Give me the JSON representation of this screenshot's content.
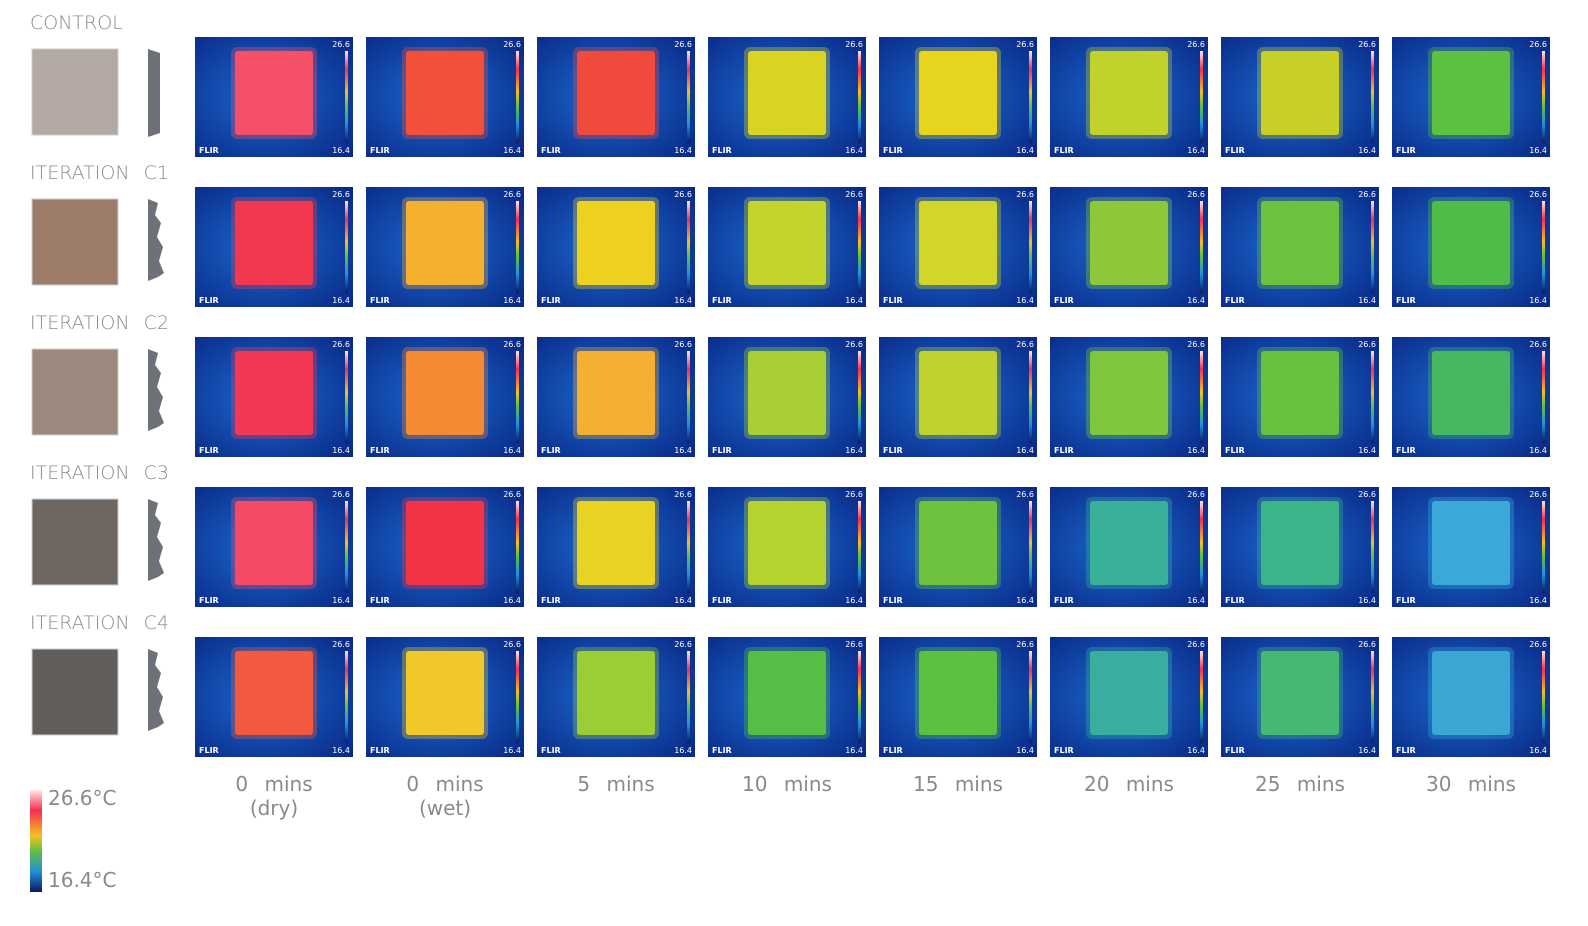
{
  "rows": [
    {
      "label": "CONTROL",
      "sample_color": "#b3a8a2",
      "cells": [
        "#f5506a",
        "#f2503a",
        "#f04a3c",
        "#d8d424",
        "#e6d41e",
        "#c2d22c",
        "#c8d028",
        "#5cc040"
      ]
    },
    {
      "label": "ITERATION C1",
      "sample_color": "#9e7c6a",
      "cells": [
        "#f2384e",
        "#f6b030",
        "#eed020",
        "#c4d42c",
        "#d2d628",
        "#8cc83a",
        "#6cc23e",
        "#50bc48"
      ]
    },
    {
      "label": "ITERATION C2",
      "sample_color": "#9c887c",
      "cells": [
        "#f23852",
        "#f48a34",
        "#f4b032",
        "#a8d034",
        "#c0d230",
        "#7ec63c",
        "#68c240",
        "#48b860"
      ]
    },
    {
      "label": "ITERATION C3",
      "sample_color": "#6e6660",
      "cells": [
        "#f54a66",
        "#f23446",
        "#e8d222",
        "#b4d230",
        "#6ec23e",
        "#38b09a",
        "#3cb48a",
        "#3aa8d8"
      ]
    },
    {
      "label": "ITERATION C4",
      "sample_color": "#625e5c",
      "cells": [
        "#f25a40",
        "#f0c82a",
        "#9ccc36",
        "#56be44",
        "#5cc040",
        "#3aae9e",
        "#46b874",
        "#3aa6d4"
      ]
    }
  ],
  "columns": [
    {
      "label": "0 mins",
      "sublabel": "(dry)"
    },
    {
      "label": "0 mins",
      "sublabel": "(wet)"
    },
    {
      "label": "5 mins"
    },
    {
      "label": "10 mins"
    },
    {
      "label": "15 mins"
    },
    {
      "label": "20 mins"
    },
    {
      "label": "25 mins"
    },
    {
      "label": "30 mins"
    }
  ],
  "image_scale": {
    "max": "26.6",
    "min": "16.4",
    "brand": "FLIR"
  },
  "legend": {
    "max": "26.6°C",
    "min": "16.4°C"
  }
}
